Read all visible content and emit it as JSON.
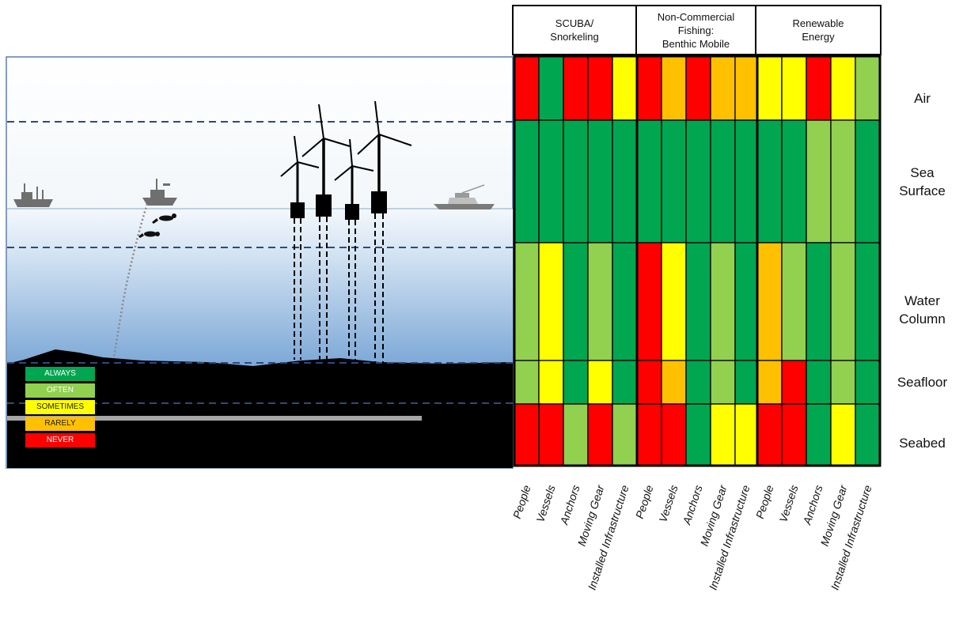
{
  "colors": {
    "always": "#00A650",
    "often": "#92D050",
    "sometimes": "#FFFF00",
    "rarely": "#FFC000",
    "never": "#FF0000"
  },
  "legend": [
    {
      "label": "ALWAYS",
      "level": "always"
    },
    {
      "label": "OFTEN",
      "level": "often"
    },
    {
      "label": "SOMETIMES",
      "level": "sometimes"
    },
    {
      "label": "RARELY",
      "level": "rarely"
    },
    {
      "label": "NEVER",
      "level": "never"
    }
  ],
  "groups": [
    {
      "title": "SCUBA/\nSnorkeling"
    },
    {
      "title": "Non-Commercial\nFishing:\nBenthic Mobile"
    },
    {
      "title": "Renewable\nEnergy"
    }
  ],
  "columns": [
    "People",
    "Vessels",
    "Anchors",
    "Moving Gear",
    "Installed Infrastructure"
  ],
  "zones": [
    "Air",
    "Sea\nSurface",
    "Water\nColumn",
    "Seafloor",
    "Seabed"
  ],
  "chart_data": {
    "type": "heatmap",
    "rows": [
      "Air",
      "Sea Surface",
      "Water Column",
      "Seafloor",
      "Seabed"
    ],
    "groups": [
      "SCUBA/Snorkeling",
      "Non-Commercial Fishing: Benthic Mobile",
      "Renewable Energy"
    ],
    "columns": [
      "People",
      "Vessels",
      "Anchors",
      "Moving Gear",
      "Installed Infrastructure"
    ],
    "values": [
      [
        [
          "never",
          "always",
          "never",
          "never",
          "sometimes"
        ],
        [
          "never",
          "rarely",
          "never",
          "rarely",
          "rarely"
        ],
        [
          "sometimes",
          "sometimes",
          "never",
          "sometimes",
          "often"
        ]
      ],
      [
        [
          "always",
          "always",
          "always",
          "always",
          "always"
        ],
        [
          "always",
          "always",
          "always",
          "always",
          "always"
        ],
        [
          "always",
          "always",
          "often",
          "often",
          "always"
        ]
      ],
      [
        [
          "often",
          "sometimes",
          "always",
          "often",
          "always"
        ],
        [
          "never",
          "sometimes",
          "always",
          "often",
          "always"
        ],
        [
          "rarely",
          "often",
          "always",
          "often",
          "always"
        ]
      ],
      [
        [
          "often",
          "sometimes",
          "always",
          "sometimes",
          "always"
        ],
        [
          "never",
          "rarely",
          "always",
          "often",
          "always"
        ],
        [
          "rarely",
          "never",
          "always",
          "often",
          "always"
        ]
      ],
      [
        [
          "never",
          "never",
          "often",
          "never",
          "often"
        ],
        [
          "never",
          "never",
          "always",
          "sometimes",
          "sometimes"
        ],
        [
          "never",
          "never",
          "always",
          "sometimes",
          "always"
        ]
      ]
    ]
  }
}
